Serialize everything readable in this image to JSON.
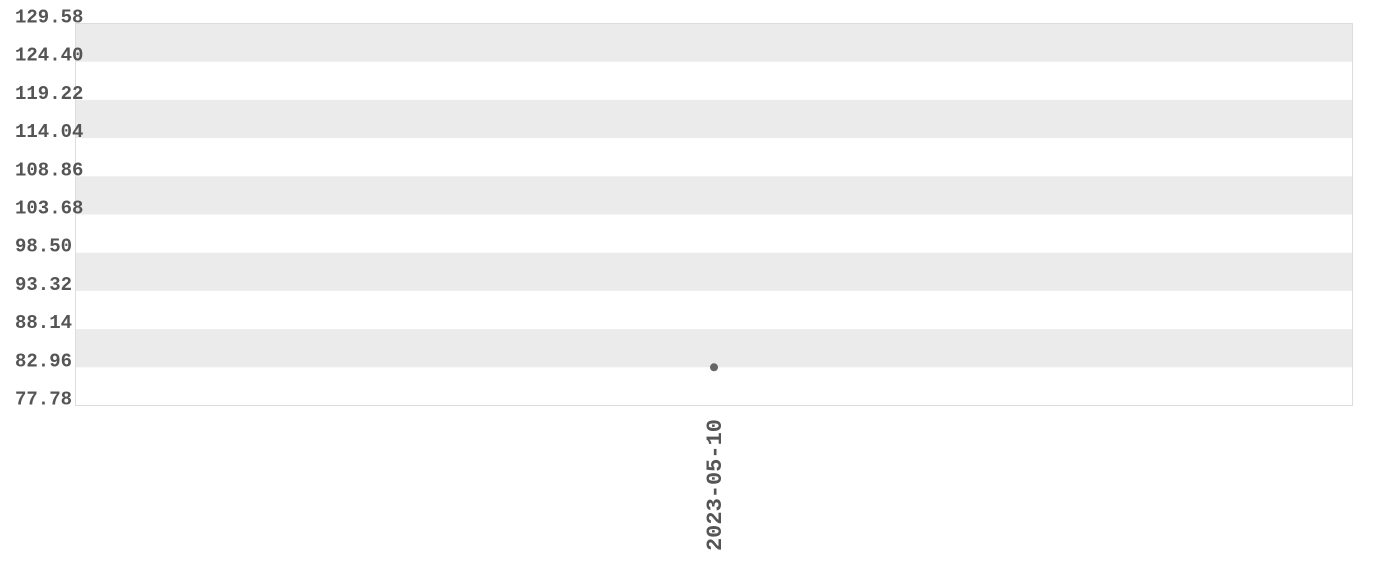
{
  "chart_data": {
    "type": "scatter",
    "title": "",
    "xlabel": "",
    "ylabel": "",
    "categories": [
      "2023-05-10"
    ],
    "values": [
      82.96
    ],
    "ylim": [
      77.78,
      129.58
    ],
    "yticks": [
      "77.78",
      "82.96",
      "88.14",
      "93.32",
      "98.50",
      "103.68",
      "108.86",
      "114.04",
      "119.22",
      "124.40",
      "129.58"
    ],
    "grid": "alternating horizontal bands",
    "colors": {
      "band": "#ebebeb",
      "point": "#666666",
      "text": "#555555",
      "border": "#dddddd"
    }
  }
}
